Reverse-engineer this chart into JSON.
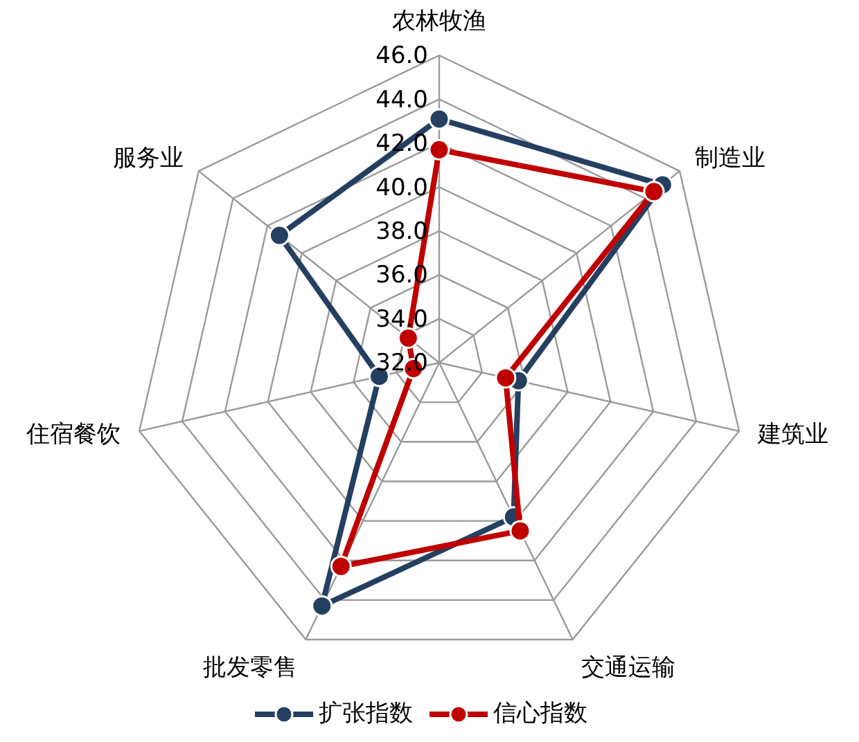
{
  "chart_data": {
    "type": "radar",
    "categories": [
      "农林牧渔",
      "制造业",
      "建筑业",
      "交通运输",
      "批发零售",
      "住宿餐饮",
      "服务业"
    ],
    "ylim": [
      32,
      46
    ],
    "yticks": [
      {
        "value": 32,
        "label": "32.0"
      },
      {
        "value": 34,
        "label": "34.0"
      },
      {
        "value": 36,
        "label": "36.0"
      },
      {
        "value": 38,
        "label": "38.0"
      },
      {
        "value": 40,
        "label": "40.0"
      },
      {
        "value": 42,
        "label": "42.0"
      },
      {
        "value": 44,
        "label": "44.0"
      },
      {
        "value": 46,
        "label": "46.0"
      }
    ],
    "marker": "circle",
    "legend": "bottom",
    "grid": true,
    "series": [
      {
        "name": "扩张指数",
        "color": "#243f60",
        "values": [
          43.1,
          45.0,
          35.7,
          39.8,
          44.3,
          34.8,
          41.3
        ]
      },
      {
        "name": "信心指数",
        "color": "#c00000",
        "values": [
          41.7,
          44.5,
          35.1,
          40.5,
          42.3,
          33.2,
          33.8
        ]
      }
    ]
  }
}
